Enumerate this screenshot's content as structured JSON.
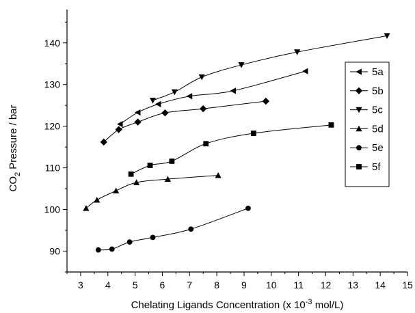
{
  "chart_data": {
    "type": "line",
    "xlabel": "Chelating Ligands Concentration (x 10",
    "xlabel_sup": "-3",
    "xlabel_end": " mol/L)",
    "ylabel_main": "CO",
    "ylabel_sub": "2",
    "ylabel_end": " Pressure / bar",
    "xlim": [
      2.5,
      15
    ],
    "ylim": [
      85,
      148
    ],
    "x_ticks": [
      "3",
      "4",
      "5",
      "6",
      "7",
      "8",
      "9",
      "10",
      "11",
      "12",
      "13",
      "14",
      "15"
    ],
    "y_ticks": [
      "90",
      "100",
      "110",
      "120",
      "130",
      "140"
    ],
    "legend_position": "right",
    "series": [
      {
        "name": "5a",
        "marker": "triangle-left",
        "x": [
          4.45,
          5.1,
          5.85,
          7.0,
          8.6,
          11.25
        ],
        "y": [
          120.5,
          123.3,
          125.3,
          127.2,
          128.5,
          133.2
        ]
      },
      {
        "name": "5b",
        "marker": "diamond",
        "x": [
          3.85,
          4.4,
          5.1,
          6.1,
          7.5,
          9.8
        ],
        "y": [
          116.2,
          119.2,
          121.0,
          123.2,
          124.2,
          126.0
        ]
      },
      {
        "name": "5c",
        "marker": "triangle-down",
        "x": [
          5.65,
          6.45,
          7.45,
          8.9,
          10.95,
          14.25
        ],
        "y": [
          126.2,
          128.2,
          131.8,
          134.7,
          137.8,
          141.7
        ]
      },
      {
        "name": "5d",
        "marker": "triangle-up",
        "x": [
          3.2,
          3.6,
          4.3,
          5.05,
          6.2,
          8.05
        ],
        "y": [
          100.3,
          102.3,
          104.5,
          106.5,
          107.3,
          108.2
        ]
      },
      {
        "name": "5e",
        "marker": "circle",
        "x": [
          3.65,
          4.15,
          4.8,
          5.65,
          7.05,
          9.15
        ],
        "y": [
          90.3,
          90.5,
          92.2,
          93.3,
          95.3,
          100.3
        ]
      },
      {
        "name": "5f",
        "marker": "square",
        "x": [
          4.85,
          5.55,
          6.35,
          7.6,
          9.35,
          12.2
        ],
        "y": [
          108.5,
          110.6,
          111.6,
          115.8,
          118.3,
          120.3
        ]
      }
    ]
  }
}
